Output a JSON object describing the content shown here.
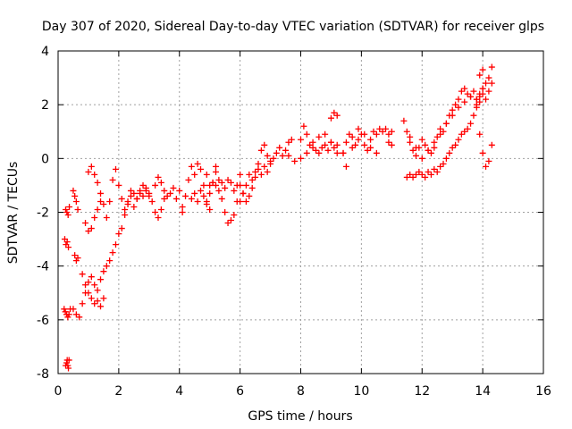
{
  "chart_data": {
    "type": "scatter",
    "title": "Day 307 of 2020, Sidereal Day-to-day VTEC variation (SDTVAR) for receiver glps",
    "xlabel": "GPS time / hours",
    "ylabel": "SDTVAR / TECUs",
    "xlim": [
      0,
      16
    ],
    "ylim": [
      -8,
      4
    ],
    "xticks": [
      "0",
      "2",
      "4",
      "6",
      "8",
      "10",
      "12",
      "14",
      "16"
    ],
    "yticks": [
      "-8",
      "-6",
      "-4",
      "-2",
      "0",
      "2",
      "4"
    ],
    "grid": true,
    "marker": "+",
    "color": "#ff0000",
    "series": [
      {
        "x": [
          0.25,
          0.28,
          0.3,
          0.32,
          0.34,
          0.36
        ],
        "y": [
          -7.7,
          -7.6,
          -7.5,
          -7.7,
          -7.8,
          -7.5
        ]
      },
      {
        "x": [
          0.2,
          0.24,
          0.28,
          0.32,
          0.36,
          0.4
        ],
        "y": [
          -5.6,
          -5.7,
          -5.8,
          -5.9,
          -5.8,
          -5.6
        ]
      },
      {
        "x": [
          0.22,
          0.26,
          0.3,
          0.34
        ],
        "y": [
          -3.0,
          -3.2,
          -3.1,
          -3.3
        ]
      },
      {
        "x": [
          0.25,
          0.29,
          0.33,
          0.37
        ],
        "y": [
          -1.9,
          -2.0,
          -2.1,
          -1.8
        ]
      },
      {
        "x": [
          0.5,
          0.55,
          0.6,
          0.65
        ],
        "y": [
          -1.2,
          -1.4,
          -1.6,
          -1.9
        ]
      },
      {
        "x": [
          0.5,
          0.6,
          0.7
        ],
        "y": [
          -5.6,
          -5.8,
          -5.9
        ]
      },
      {
        "x": [
          0.55,
          0.6,
          0.65
        ],
        "y": [
          -3.6,
          -3.8,
          -3.7
        ]
      },
      {
        "x": [
          0.8,
          0.9,
          1.0,
          1.1,
          1.2,
          1.3,
          1.4,
          1.5
        ],
        "y": [
          -4.3,
          -4.7,
          -5.0,
          -5.2,
          -5.4,
          -5.3,
          -5.5,
          -5.2
        ]
      },
      {
        "x": [
          0.8,
          0.9,
          1.0,
          1.1,
          1.2,
          1.3,
          1.4,
          1.5,
          1.6,
          1.7,
          1.8,
          1.9,
          2.0,
          2.1,
          2.2,
          2.3,
          2.4,
          2.5,
          2.6,
          2.7,
          2.8,
          2.9,
          3.0
        ],
        "y": [
          -5.4,
          -5.0,
          -4.6,
          -4.4,
          -4.7,
          -4.9,
          -4.5,
          -4.2,
          -4.0,
          -3.8,
          -3.5,
          -3.2,
          -2.8,
          -2.6,
          -2.1,
          -1.7,
          -1.4,
          -1.3,
          -1.5,
          -1.3,
          -1.0,
          -1.2,
          -1.4
        ]
      },
      {
        "x": [
          0.9,
          1.0,
          1.1,
          1.2,
          1.3,
          1.4
        ],
        "y": [
          -2.4,
          -2.7,
          -2.6,
          -2.2,
          -1.9,
          -1.6
        ]
      },
      {
        "x": [
          1.0,
          1.1,
          1.2,
          1.3,
          1.4,
          1.5
        ],
        "y": [
          -0.5,
          -0.3,
          -0.6,
          -0.9,
          -1.3,
          -1.7
        ]
      },
      {
        "x": [
          1.6,
          1.7,
          1.8,
          1.9,
          2.0,
          2.1,
          2.2,
          2.3,
          2.4
        ],
        "y": [
          -2.2,
          -1.6,
          -0.8,
          -0.4,
          -1.0,
          -1.5,
          -1.9,
          -1.6,
          -1.2
        ]
      },
      {
        "x": [
          2.5,
          2.6,
          2.7,
          2.8,
          2.9,
          3.0,
          3.1,
          3.2,
          3.3,
          3.4,
          3.5
        ],
        "y": [
          -1.8,
          -1.5,
          -1.2,
          -1.4,
          -1.1,
          -1.3,
          -1.6,
          -2.0,
          -2.2,
          -1.9,
          -1.5
        ]
      },
      {
        "x": [
          3.2,
          3.3,
          3.4,
          3.5,
          3.6,
          3.7,
          3.8,
          3.9,
          4.0,
          4.1
        ],
        "y": [
          -1.0,
          -0.7,
          -0.9,
          -1.2,
          -1.4,
          -1.3,
          -1.1,
          -1.5,
          -1.2,
          -1.8
        ]
      },
      {
        "x": [
          4.1,
          4.2,
          4.3,
          4.4,
          4.5,
          4.6,
          4.7,
          4.8,
          4.9,
          5.0,
          5.1,
          5.2
        ],
        "y": [
          -2.0,
          -1.4,
          -0.8,
          -0.3,
          -0.6,
          -0.2,
          -0.4,
          -1.0,
          -1.6,
          -1.3,
          -0.9,
          -0.5
        ]
      },
      {
        "x": [
          4.4,
          4.5,
          4.6,
          4.7,
          4.8,
          4.9,
          5.0
        ],
        "y": [
          -1.5,
          -1.3,
          -1.6,
          -1.2,
          -1.4,
          -1.7,
          -1.9
        ]
      },
      {
        "x": [
          4.9,
          5.0,
          5.1,
          5.2,
          5.3,
          5.4,
          5.5,
          5.6,
          5.7,
          5.8,
          5.9,
          6.0
        ],
        "y": [
          -0.6,
          -1.0,
          -0.9,
          -1.0,
          -1.2,
          -1.5,
          -2.0,
          -2.4,
          -2.3,
          -2.1,
          -1.6,
          -1.0
        ]
      },
      {
        "x": [
          5.2,
          5.3,
          5.4,
          5.5,
          5.6,
          5.7,
          5.8,
          5.9,
          6.0
        ],
        "y": [
          -0.3,
          -0.8,
          -0.9,
          -1.1,
          -0.8,
          -0.9,
          -1.2,
          -1.0,
          -0.6
        ]
      },
      {
        "x": [
          6.0,
          6.1,
          6.2,
          6.3,
          6.4,
          6.5,
          6.6,
          6.7,
          6.8,
          6.9,
          7.0,
          7.1,
          7.2,
          7.3,
          7.4,
          7.5,
          7.6,
          7.7
        ],
        "y": [
          -1.6,
          -1.3,
          -1.0,
          -0.6,
          -0.8,
          -0.5,
          -0.2,
          0.3,
          0.5,
          0.1,
          -0.2,
          0.0,
          0.2,
          0.4,
          0.1,
          0.3,
          0.6,
          0.7
        ]
      },
      {
        "x": [
          6.1,
          6.2,
          6.3,
          6.4,
          6.5,
          6.6,
          6.7,
          6.8,
          6.9,
          7.0
        ],
        "y": [
          -1.3,
          -1.6,
          -1.4,
          -1.1,
          -0.7,
          -0.4,
          -0.6,
          -0.3,
          -0.5,
          -0.1
        ]
      },
      {
        "x": [
          7.6,
          7.8,
          8.0,
          8.1,
          8.2,
          8.3,
          8.4,
          8.5,
          8.6,
          8.7,
          8.8,
          8.9,
          9.0,
          9.1,
          9.2
        ],
        "y": [
          0.1,
          -0.1,
          0.7,
          1.2,
          0.9,
          0.5,
          0.6,
          0.3,
          0.2,
          0.4,
          0.5,
          0.3,
          0.6,
          0.4,
          0.2
        ]
      },
      {
        "x": [
          8.0,
          8.2,
          8.4,
          8.6,
          8.8,
          9.0,
          9.2,
          9.4
        ],
        "y": [
          0.0,
          0.2,
          0.4,
          0.8,
          0.9,
          0.6,
          0.5,
          0.2
        ]
      },
      {
        "x": [
          9.0,
          9.1,
          9.2
        ],
        "y": [
          1.5,
          1.7,
          1.6
        ]
      },
      {
        "x": [
          9.4,
          9.5,
          9.6,
          9.7,
          9.8,
          9.9,
          10.0,
          10.1,
          10.2,
          10.3,
          10.4,
          10.5,
          10.6,
          10.7,
          10.8,
          10.9,
          11.0
        ],
        "y": [
          0.2,
          0.6,
          0.9,
          0.8,
          0.5,
          0.7,
          0.9,
          0.5,
          0.3,
          0.7,
          1.0,
          0.9,
          1.1,
          1.0,
          1.1,
          0.9,
          1.0
        ]
      },
      {
        "x": [
          9.5,
          9.7,
          9.9,
          10.1,
          10.3,
          10.5
        ],
        "y": [
          -0.3,
          0.4,
          1.1,
          0.9,
          0.4,
          0.2
        ]
      },
      {
        "x": [
          10.9,
          11.0
        ],
        "y": [
          0.6,
          0.5
        ]
      },
      {
        "x": [
          11.4,
          11.5,
          11.6,
          11.7,
          11.8,
          11.9,
          12.0,
          12.1,
          12.2,
          12.3,
          12.4,
          12.5,
          12.6,
          12.7,
          12.8,
          12.9,
          13.0,
          13.1,
          13.2,
          13.3,
          13.4,
          13.5,
          13.6,
          13.7,
          13.8,
          13.9,
          14.0
        ],
        "y": [
          1.4,
          1.0,
          0.6,
          0.3,
          0.1,
          0.4,
          0.7,
          0.5,
          0.3,
          0.2,
          0.4,
          0.8,
          1.1,
          1.0,
          1.3,
          1.6,
          1.8,
          2.0,
          2.2,
          2.5,
          2.6,
          2.4,
          2.3,
          2.5,
          2.2,
          2.1,
          2.4
        ]
      },
      {
        "x": [
          11.5,
          11.6,
          11.7,
          11.8,
          11.9,
          12.0,
          12.1,
          12.2,
          12.3,
          12.4,
          12.5,
          12.6,
          12.7,
          12.8,
          12.9,
          13.0,
          13.1,
          13.2,
          13.3,
          13.4,
          13.5,
          13.6,
          13.7,
          13.8,
          13.9,
          14.0
        ],
        "y": [
          -0.7,
          -0.6,
          -0.7,
          -0.6,
          -0.5,
          -0.6,
          -0.7,
          -0.5,
          -0.6,
          -0.4,
          -0.5,
          -0.3,
          -0.2,
          0.0,
          0.2,
          0.4,
          0.5,
          0.7,
          0.9,
          1.0,
          1.1,
          1.3,
          1.6,
          1.9,
          2.3,
          2.6
        ]
      },
      {
        "x": [
          11.6,
          11.8,
          12.0,
          12.2,
          12.4,
          12.6,
          12.8,
          13.0,
          13.2,
          13.4,
          13.6,
          13.8
        ],
        "y": [
          0.8,
          0.4,
          0.0,
          0.3,
          0.6,
          0.9,
          1.3,
          1.6,
          1.9,
          2.1,
          2.3,
          2.2
        ]
      },
      {
        "x": [
          13.9,
          14.0,
          14.1,
          14.2,
          14.3
        ],
        "y": [
          3.1,
          3.3,
          2.8,
          3.0,
          3.4
        ]
      },
      {
        "x": [
          13.8,
          13.9,
          14.0,
          14.1,
          14.2,
          14.3
        ],
        "y": [
          2.0,
          2.4,
          2.6,
          2.2,
          2.5,
          2.8
        ]
      },
      {
        "x": [
          13.9,
          14.0,
          14.1,
          14.2,
          14.3
        ],
        "y": [
          0.9,
          0.2,
          -0.3,
          -0.1,
          0.5
        ]
      }
    ]
  }
}
